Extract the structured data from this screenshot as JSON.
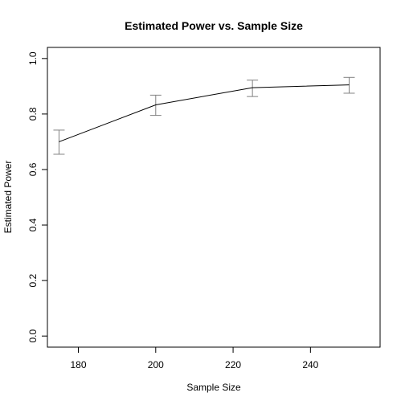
{
  "chart_data": {
    "type": "line",
    "title": "Estimated Power vs. Sample Size",
    "xlabel": "Sample Size",
    "ylabel": "Estimated Power",
    "xlim": [
      172,
      258
    ],
    "ylim": [
      -0.04,
      1.04
    ],
    "x_ticks": [
      180,
      200,
      220,
      240
    ],
    "y_ticks": [
      0.0,
      0.2,
      0.4,
      0.6,
      0.8,
      1.0
    ],
    "x_tick_labels": [
      "180",
      "200",
      "220",
      "240"
    ],
    "y_tick_labels": [
      "0.0",
      "0.2",
      "0.4",
      "0.6",
      "0.8",
      "1.0"
    ],
    "grid": false,
    "series": [
      {
        "x": [
          175,
          200,
          225,
          250
        ],
        "y": [
          0.7,
          0.833,
          0.895,
          0.905
        ],
        "lower": [
          0.655,
          0.795,
          0.863,
          0.875
        ],
        "upper": [
          0.742,
          0.868,
          0.922,
          0.932
        ]
      }
    ],
    "colors": {
      "line": "#000000",
      "error_bar": "#808080",
      "axis": "#000000"
    }
  }
}
